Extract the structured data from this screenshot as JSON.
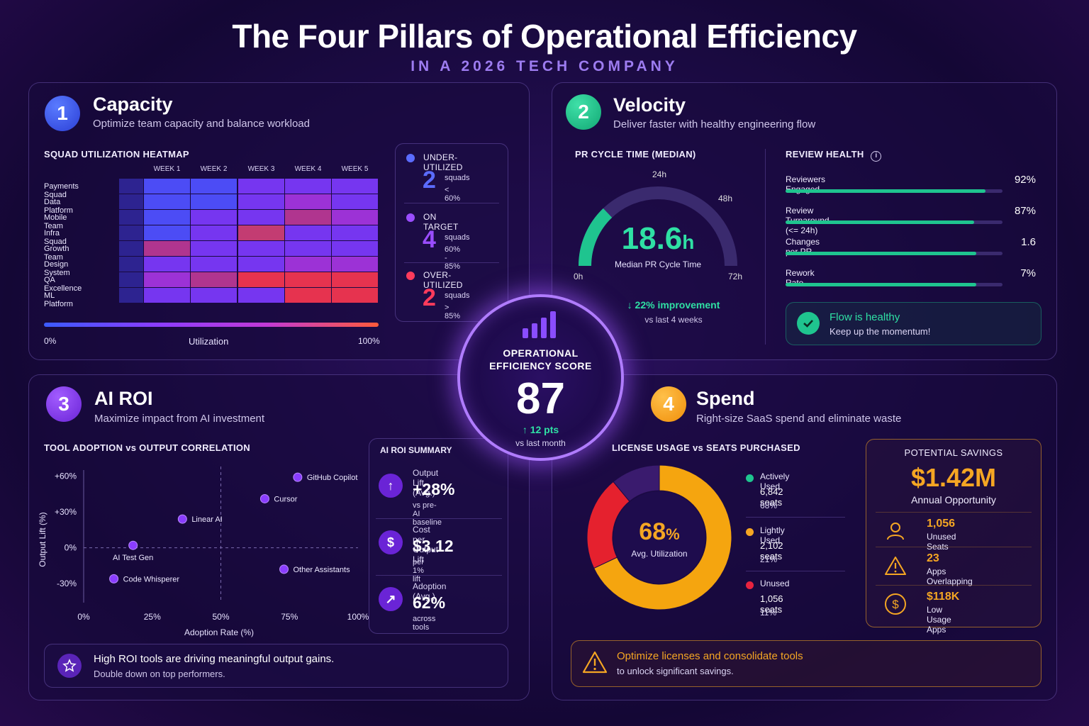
{
  "header": {
    "title": "The Four Pillars of Operational Efficiency",
    "subtitle": "IN A 2026 TECH COMPANY"
  },
  "capacity": {
    "number": "1",
    "title": "Capacity",
    "subtitle": "Optimize team capacity and balance workload",
    "heatmap_title": "SQUAD UTILIZATION HEATMAP",
    "weeks": [
      "WEEK 1",
      "WEEK 2",
      "WEEK 3",
      "WEEK 4",
      "WEEK 5"
    ],
    "squads": [
      "Payments Squad",
      "Data Platform",
      "Mobile Team",
      "Infra Squad",
      "Growth Team",
      "Design System",
      "QA Excellence",
      "ML Platform"
    ],
    "scale": {
      "min": "0%",
      "label": "Utilization",
      "max": "100%"
    },
    "summary": [
      {
        "title": "UNDER-UTILIZED",
        "value": "2",
        "unit": "squads",
        "range": "< 60%",
        "color": "#5b6cff"
      },
      {
        "title": "ON TARGET",
        "value": "4",
        "unit": "squads",
        "range": "60% - 85%",
        "color": "#9a4dff"
      },
      {
        "title": "OVER-UTILIZED",
        "value": "2",
        "unit": "squads",
        "range": "> 85%",
        "color": "#ff3b5c"
      }
    ]
  },
  "velocity": {
    "number": "2",
    "title": "Velocity",
    "subtitle": "Deliver faster with healthy engineering flow",
    "gauge_title": "PR CYCLE TIME (MEDIAN)",
    "gauge": {
      "value": "18.6",
      "unit": "h",
      "label": "Median PR Cycle Time",
      "t0": "0h",
      "t24": "24h",
      "t48": "48h",
      "t72": "72h",
      "fraction": 0.258
    },
    "improvement": "22% improvement",
    "improvement_sub": "vs last 4 weeks",
    "review_title": "REVIEW HEALTH",
    "metrics": [
      {
        "label": "Reviewers Engaged",
        "value": "92%",
        "fill": 0.92
      },
      {
        "label": "Review Turnaround (<= 24h)",
        "value": "87%",
        "fill": 0.87
      },
      {
        "label": "Changes per PR",
        "value": "1.6",
        "fill": 0.88
      },
      {
        "label": "Rework Rate",
        "value": "7%",
        "fill": 0.88
      }
    ],
    "flow_title": "Flow is healthy",
    "flow_sub": "Keep up the momentum!"
  },
  "score": {
    "title_line1": "OPERATIONAL",
    "title_line2": "EFFICIENCY SCORE",
    "value": "87",
    "delta": "12 pts",
    "delta_sub": "vs last month"
  },
  "ai": {
    "number": "3",
    "title": "AI ROI",
    "subtitle": "Maximize impact from AI investment",
    "chart_title": "TOOL ADOPTION vs OUTPUT CORRELATION",
    "summary_title": "AI ROI SUMMARY",
    "summary": [
      {
        "icon": "arrow-up-icon",
        "label": "Output Lift (Avg.)",
        "value": "+28%",
        "sub": "vs pre-AI baseline"
      },
      {
        "icon": "dollar-icon",
        "label": "Cost per Output Lift",
        "value": "$3.12",
        "sub": "per 1% lift"
      },
      {
        "icon": "trend-up-icon",
        "label": "Adoption (Avg.)",
        "value": "62%",
        "sub": "across tools"
      }
    ],
    "insight_title": "High ROI tools are driving meaningful output gains.",
    "insight_sub": "Double down on top performers."
  },
  "chart_data": {
    "type": "scatter",
    "xlabel": "Adoption Rate (%)",
    "ylabel": "Output Lift (%)",
    "xlim": [
      0,
      100
    ],
    "ylim": [
      -40,
      65
    ],
    "xticks": [
      "0%",
      "25%",
      "50%",
      "75%",
      "100%"
    ],
    "xtick_values": [
      0,
      25,
      50,
      75,
      100
    ],
    "yticks": [
      "+60%",
      "+30%",
      "0%",
      "-30%"
    ],
    "ytick_values": [
      60,
      30,
      0,
      -30
    ],
    "points": [
      {
        "name": "GitHub Copilot",
        "x": 78,
        "y": 59
      },
      {
        "name": "Cursor",
        "x": 66,
        "y": 41
      },
      {
        "name": "Linear AI",
        "x": 36,
        "y": 24
      },
      {
        "name": "AI Test Gen",
        "x": 18,
        "y": 2
      },
      {
        "name": "Other Assistants",
        "x": 73,
        "y": -18
      },
      {
        "name": "Code Whisperer",
        "x": 11,
        "y": -26
      }
    ]
  },
  "spend": {
    "number": "4",
    "title": "Spend",
    "subtitle": "Right-size SaaS spend and eliminate waste",
    "chart_title": "LICENSE USAGE vs SEATS PURCHASED",
    "donut_value": "68",
    "donut_unit": "%",
    "donut_label": "Avg. Utilization",
    "legend": [
      {
        "label": "Actively Used",
        "seats": "6,842 seats",
        "pct": "68%",
        "color": "#1fc48f"
      },
      {
        "label": "Lightly Used",
        "seats": "2,102 seats",
        "pct": "21%",
        "color": "#f5a623"
      },
      {
        "label": "Unused",
        "seats": "1,056 seats",
        "pct": "11%",
        "color": "#e8233f"
      }
    ],
    "donut_segments": [
      {
        "name": "Actively Used",
        "value": 68,
        "color": "#f5a50f"
      },
      {
        "name": "Lightly Used",
        "value": 21,
        "color": "#e5212e"
      },
      {
        "name": "Unused",
        "value": 11,
        "color": "#3a1b6e"
      }
    ],
    "savings_title": "POTENTIAL SAVINGS",
    "savings_value": "$1.42M",
    "savings_sub": "Annual Opportunity",
    "savings_items": [
      {
        "icon": "user-icon",
        "value": "1,056",
        "label": "Unused Seats"
      },
      {
        "icon": "warning-icon",
        "value": "23",
        "label": "Apps Overlapping"
      },
      {
        "icon": "dollar-icon",
        "value": "$118K",
        "label": "Low Usage Apps"
      }
    ],
    "alert_title": "Optimize licenses and consolidate tools",
    "alert_sub": "to unlock significant savings."
  },
  "colors": {
    "blue": "#3b5bff",
    "green": "#1fc48f",
    "purple": "#8a3dff",
    "orange": "#f5a623",
    "red": "#ff3b5c"
  }
}
